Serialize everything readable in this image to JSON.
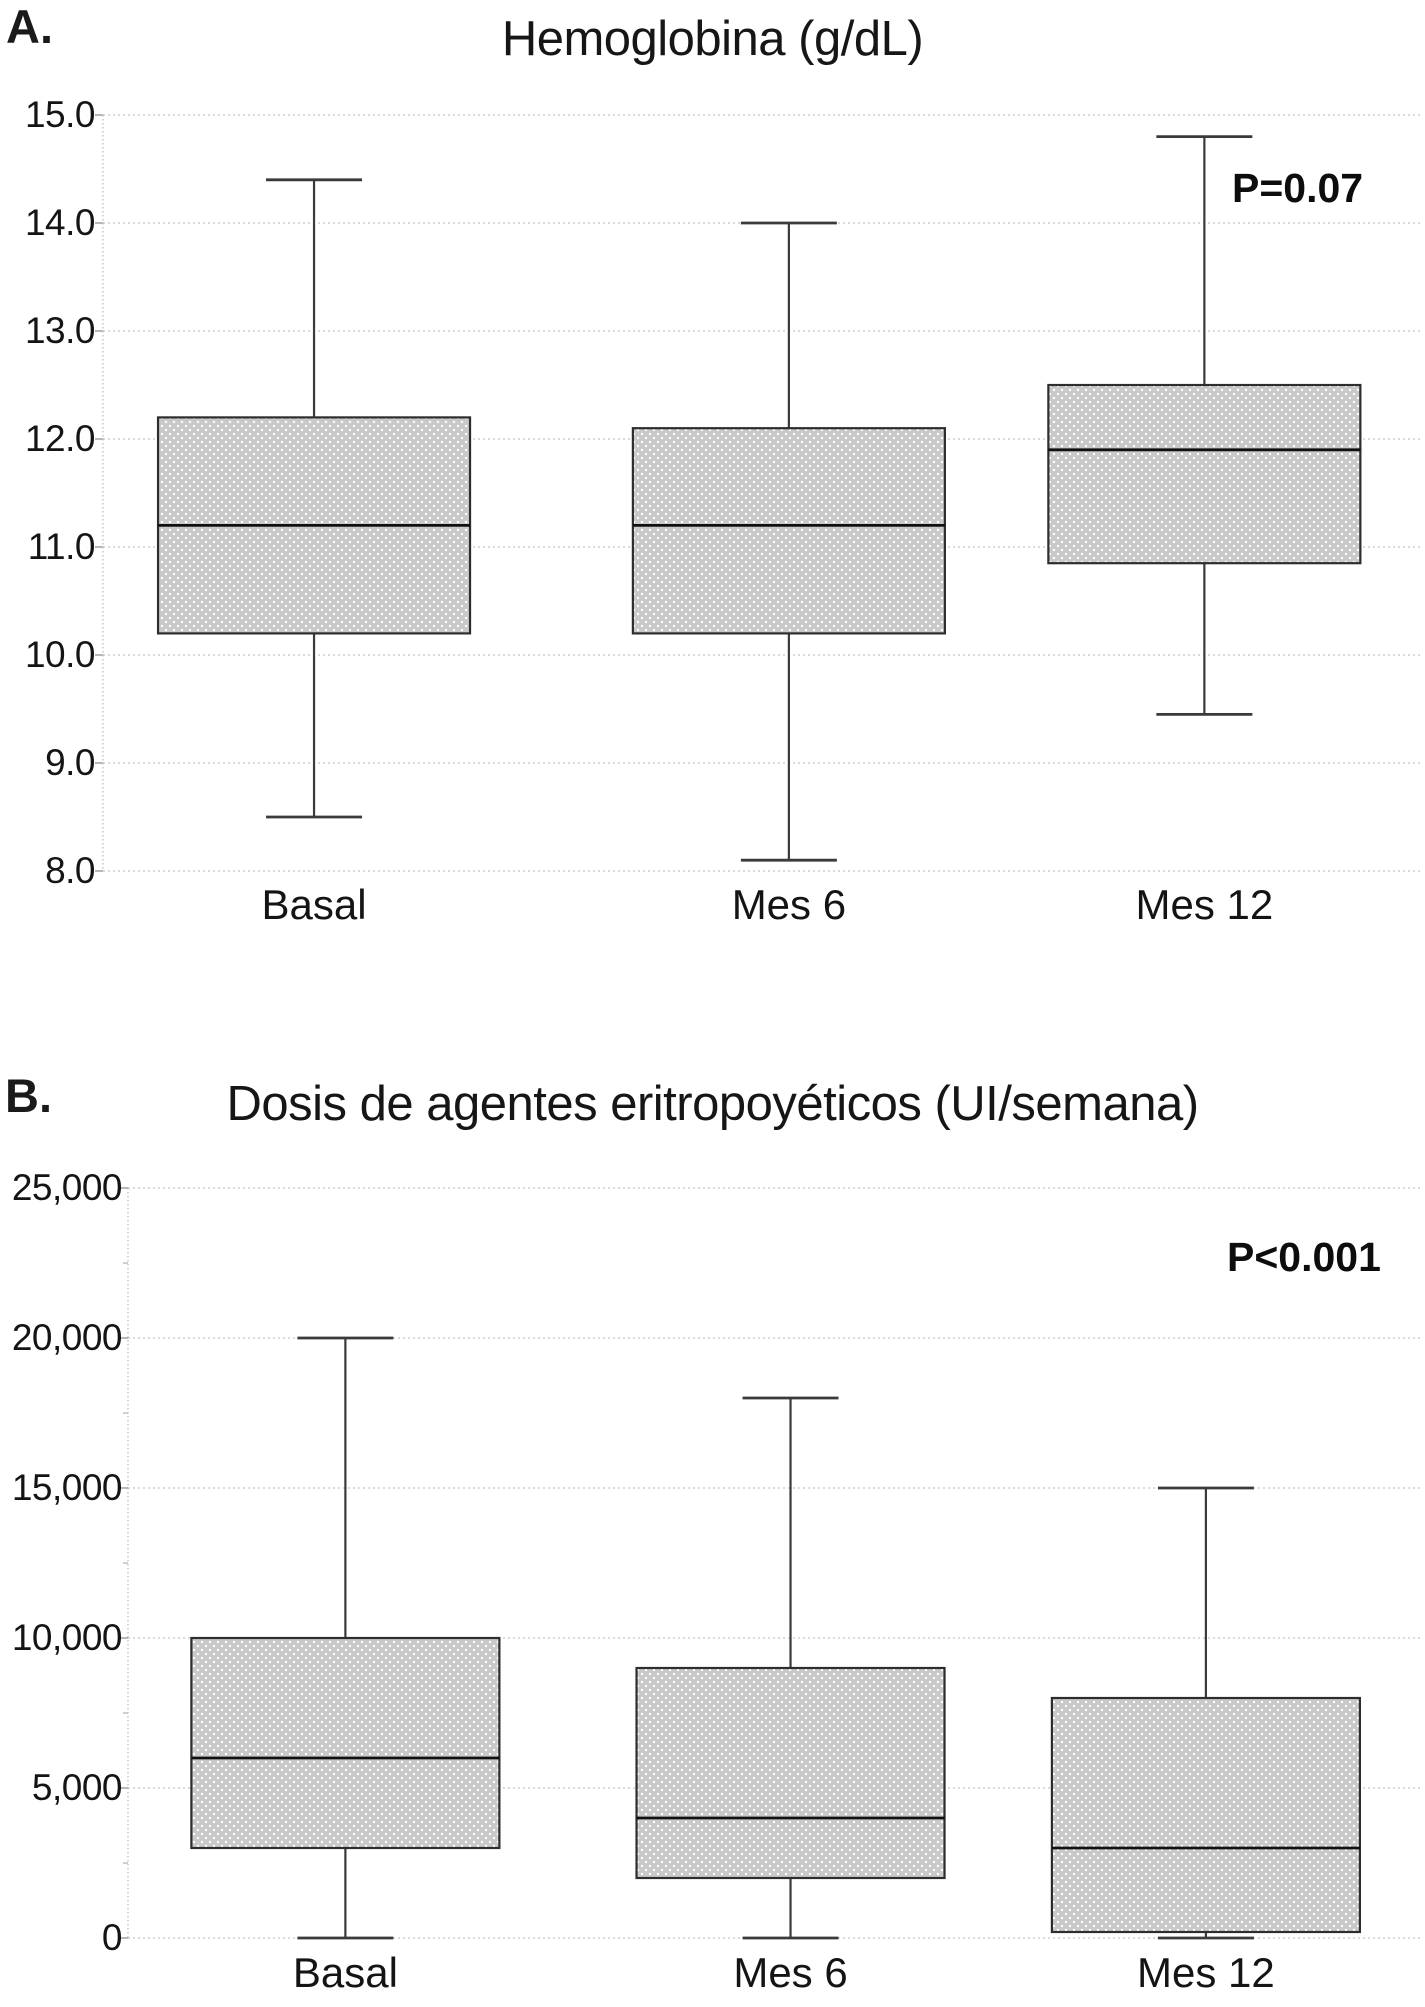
{
  "chart_data": [
    {
      "type": "box",
      "panel_label": "A.",
      "title": "Hemoglobina (g/dL)",
      "p_value_label": "P=0.07",
      "categories": [
        "Basal",
        "Mes 6",
        "Mes 12"
      ],
      "ylabel": "",
      "ylim": [
        8.0,
        15.0
      ],
      "ytick_values": [
        15,
        14,
        13,
        12,
        11,
        10,
        9,
        8
      ],
      "ytick_labels": [
        "15.0",
        "14.0",
        "13.0",
        "12.0",
        "11.0",
        "10.0",
        "9.0",
        "8.0"
      ],
      "grid": "horizontal-dotted",
      "legend": "none",
      "series": [
        {
          "name": "Basal",
          "whisker_low": 8.5,
          "q1": 10.2,
          "median": 11.2,
          "q3": 12.2,
          "whisker_high": 14.4
        },
        {
          "name": "Mes 6",
          "whisker_low": 8.1,
          "q1": 10.2,
          "median": 11.2,
          "q3": 12.1,
          "whisker_high": 14.0
        },
        {
          "name": "Mes 12",
          "whisker_low": 9.45,
          "q1": 10.85,
          "median": 11.9,
          "q3": 12.5,
          "whisker_high": 14.8
        }
      ]
    },
    {
      "type": "box",
      "panel_label": "B.",
      "title": "Dosis de agentes eritropoyéticos (UI/semana)",
      "p_value_label": "P<0.001",
      "categories": [
        "Basal",
        "Mes 6",
        "Mes 12"
      ],
      "ylabel": "",
      "ylim": [
        0,
        25000
      ],
      "ytick_values": [
        25000,
        20000,
        15000,
        10000,
        5000,
        0
      ],
      "ytick_labels": [
        "25,000",
        "20,000",
        "15,000",
        "10,000",
        "5,000",
        "0"
      ],
      "grid": "horizontal-dotted",
      "legend": "none",
      "series": [
        {
          "name": "Basal",
          "whisker_low": 0,
          "q1": 3000,
          "median": 6000,
          "q3": 10000,
          "whisker_high": 20000
        },
        {
          "name": "Mes 6",
          "whisker_low": 0,
          "q1": 2000,
          "median": 4000,
          "q3": 9000,
          "whisker_high": 18000
        },
        {
          "name": "Mes 12",
          "whisker_low": 0,
          "q1": 200,
          "median": 3000,
          "q3": 8000,
          "whisker_high": 15000
        }
      ]
    }
  ],
  "colors": {
    "background": "#ffffff",
    "box_fill": "#c9c9c9",
    "box_dot": "#ffffff",
    "box_border": "#2d2d2d",
    "median": "#101010",
    "whisker": "#3a3a3a",
    "gridline": "#c4c4c4",
    "text": "#141414"
  }
}
